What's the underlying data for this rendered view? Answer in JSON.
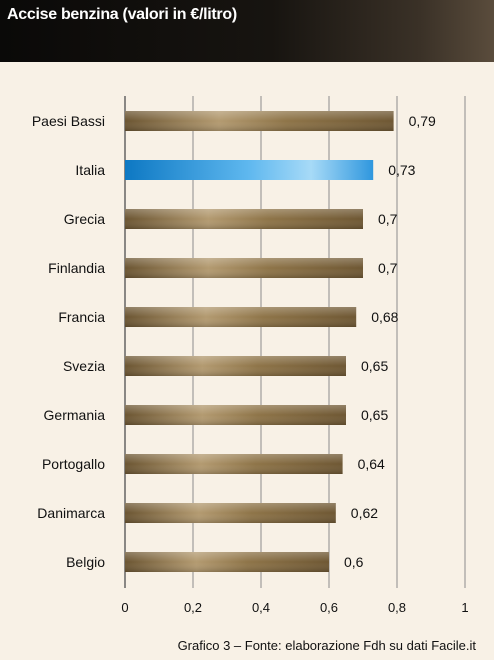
{
  "title": "Accise benzina (valori in €/litro)",
  "caption": "Grafico 3 – Fonte: elaborazione Fdh su dati Facile.it",
  "colors": {
    "bar_gold": "#8a7046",
    "bar_highlight": "#1c8fd6",
    "grid": "#8c8c8c",
    "text": "#111111"
  },
  "chart_data": {
    "type": "bar",
    "orientation": "horizontal",
    "categories": [
      "Paesi Bassi",
      "Italia",
      "Grecia",
      "Finlandia",
      "Francia",
      "Svezia",
      "Germania",
      "Portogallo",
      "Danimarca",
      "Belgio"
    ],
    "values": [
      0.79,
      0.73,
      0.7,
      0.7,
      0.68,
      0.65,
      0.65,
      0.64,
      0.62,
      0.6
    ],
    "value_labels": [
      "0,79",
      "0,73",
      "0,7",
      "0,7",
      "0,68",
      "0,65",
      "0,65",
      "0,64",
      "0,62",
      "0,6"
    ],
    "highlight": "Italia",
    "xlim": [
      0,
      1
    ],
    "xticks": [
      0,
      0.2,
      0.4,
      0.6,
      0.8,
      1
    ],
    "xtick_labels": [
      "0",
      "0,2",
      "0,4",
      "0,6",
      "0,8",
      "1"
    ],
    "grid": true
  }
}
